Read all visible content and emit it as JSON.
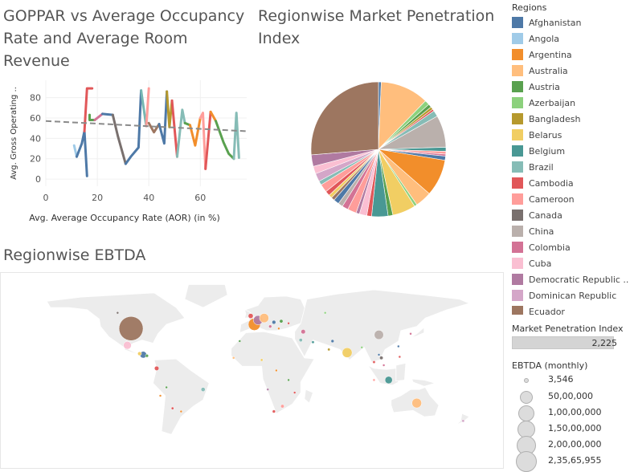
{
  "charts": {
    "scatter_title": " GOPPAR vs Average Occupancy Rate and Average Room Revenue",
    "pie_title": "Regionwise Market Penetration Index",
    "map_title": "Regionwise EBTDA"
  },
  "legend": {
    "title": "Regions",
    "items": [
      {
        "label": "Afghanistan",
        "color": "#4e79a7"
      },
      {
        "label": "Angola",
        "color": "#a0cbe8"
      },
      {
        "label": "Argentina",
        "color": "#f28e2b"
      },
      {
        "label": "Australia",
        "color": "#ffbe7d"
      },
      {
        "label": "Austria",
        "color": "#59a14f"
      },
      {
        "label": "Azerbaijan",
        "color": "#8cd17d"
      },
      {
        "label": "Bangladesh",
        "color": "#b6992d"
      },
      {
        "label": "Belarus",
        "color": "#f1ce63"
      },
      {
        "label": "Belgium",
        "color": "#499894"
      },
      {
        "label": "Brazil",
        "color": "#86bcb6"
      },
      {
        "label": "Cambodia",
        "color": "#e15759"
      },
      {
        "label": "Cameroon",
        "color": "#ff9d9a"
      },
      {
        "label": "Canada",
        "color": "#79706e"
      },
      {
        "label": "China",
        "color": "#bab0ac"
      },
      {
        "label": "Colombia",
        "color": "#d37295"
      },
      {
        "label": "Cuba",
        "color": "#fabfd2"
      },
      {
        "label": "Democratic Republic ..",
        "color": "#b07aa1"
      },
      {
        "label": "Dominican Republic",
        "color": "#d4a6c8"
      },
      {
        "label": "Ecuador",
        "color": "#9d7660"
      }
    ]
  },
  "market_penetration": {
    "title": "Market Penetration Index",
    "value": "2,225"
  },
  "ebtda_legend": {
    "title": "EBTDA (monthly)",
    "sizes": [
      "3,546",
      "50,00,000",
      "1,00,00,000",
      "1,50,00,000",
      "2,00,00,000",
      "2,35,65,955"
    ]
  },
  "chart_data": [
    {
      "type": "line",
      "title": " GOPPAR vs Average Occupancy Rate and Average Room Revenue",
      "xlabel": "Avg. Average Occupancy Rate (AOR) (in %)",
      "ylabel": "Avg. Gross Operating ..",
      "xlim": [
        0,
        78
      ],
      "ylim": [
        -7,
        97
      ],
      "x_ticks": [
        "0",
        "20",
        "40",
        "60"
      ],
      "y_ticks": [
        "0",
        "20",
        "40",
        "60",
        "80"
      ],
      "trend_line": [
        [
          0,
          57
        ],
        [
          78,
          47
        ]
      ],
      "segments": [
        {
          "color": "#a0cbe8",
          "points": [
            [
              11,
              33
            ],
            [
              12,
              22
            ]
          ]
        },
        {
          "color": "#4e79a7",
          "points": [
            [
              12,
              22
            ],
            [
              14,
              35
            ],
            [
              15,
              47
            ],
            [
              16,
              3
            ]
          ]
        },
        {
          "color": "#e15759",
          "points": [
            [
              15,
              47
            ],
            [
              16,
              89
            ],
            [
              18,
              89
            ]
          ]
        },
        {
          "color": "#59a14f",
          "points": [
            [
              17,
              63
            ],
            [
              17,
              58
            ],
            [
              19,
              58
            ]
          ]
        },
        {
          "color": "#d37295",
          "points": [
            [
              19,
              58
            ],
            [
              21,
              62
            ],
            [
              22,
              64
            ]
          ]
        },
        {
          "color": "#4e79a7",
          "points": [
            [
              22,
              64
            ],
            [
              26,
              63
            ]
          ]
        },
        {
          "color": "#79706e",
          "points": [
            [
              26,
              63
            ],
            [
              28,
              42
            ],
            [
              31,
              15
            ]
          ]
        },
        {
          "color": "#4e79a7",
          "points": [
            [
              31,
              15
            ],
            [
              33,
              22
            ],
            [
              36,
              31
            ],
            [
              37,
              87
            ]
          ]
        },
        {
          "color": "#76b7b2",
          "points": [
            [
              37,
              87
            ],
            [
              39,
              52
            ]
          ]
        },
        {
          "color": "#ff9d9a",
          "points": [
            [
              39,
              52
            ],
            [
              40,
              89
            ]
          ]
        },
        {
          "color": "#9d7660",
          "points": [
            [
              40,
              55
            ],
            [
              42,
              46
            ],
            [
              44,
              54
            ]
          ]
        },
        {
          "color": "#4e79a7",
          "points": [
            [
              44,
              54
            ],
            [
              46,
              35
            ],
            [
              47,
              86
            ]
          ]
        },
        {
          "color": "#b6992d",
          "points": [
            [
              47,
              86
            ],
            [
              48,
              51
            ],
            [
              49,
              77
            ]
          ]
        },
        {
          "color": "#e15759",
          "points": [
            [
              49,
              77
            ],
            [
              50,
              49
            ],
            [
              51,
              22
            ]
          ]
        },
        {
          "color": "#86bcb6",
          "points": [
            [
              51,
              22
            ],
            [
              53,
              68
            ],
            [
              54,
              55
            ]
          ]
        },
        {
          "color": "#59a14f",
          "points": [
            [
              54,
              55
            ],
            [
              56,
              53
            ]
          ]
        },
        {
          "color": "#f28e2b",
          "points": [
            [
              56,
              53
            ],
            [
              58,
              33
            ],
            [
              60,
              60
            ]
          ]
        },
        {
          "color": "#ff9d9a",
          "points": [
            [
              60,
              60
            ],
            [
              61,
              65
            ],
            [
              62,
              10
            ]
          ]
        },
        {
          "color": "#e15759",
          "points": [
            [
              62,
              10
            ],
            [
              64,
              66
            ]
          ]
        },
        {
          "color": "#f28e2b",
          "points": [
            [
              64,
              66
            ],
            [
              66,
              57
            ]
          ]
        },
        {
          "color": "#59a14f",
          "points": [
            [
              66,
              57
            ],
            [
              69,
              36
            ],
            [
              71,
              25
            ],
            [
              73,
              20
            ]
          ]
        },
        {
          "color": "#86bcb6",
          "points": [
            [
              73,
              20
            ],
            [
              74,
              65
            ],
            [
              75,
              21
            ]
          ]
        }
      ]
    },
    {
      "type": "pie",
      "title": "Regionwise Market Penetration Index",
      "slices": [
        {
          "color": "#4e79a7",
          "value": 8
        },
        {
          "color": "#ffbe7d",
          "value": 142
        },
        {
          "color": "#8cd17d",
          "value": 14
        },
        {
          "color": "#59a14f",
          "value": 10
        },
        {
          "color": "#b6992d",
          "value": 8
        },
        {
          "color": "#e15759",
          "value": 6
        },
        {
          "color": "#86bcb6",
          "value": 18
        },
        {
          "color": "#bab0ac",
          "value": 94
        },
        {
          "color": "#499894",
          "value": 12
        },
        {
          "color": "#ff9d9a",
          "value": 8
        },
        {
          "color": "#d37295",
          "value": 6
        },
        {
          "color": "#4e79a7",
          "value": 12
        },
        {
          "color": "#f28e2b",
          "value": 108
        },
        {
          "color": "#ffbe7d",
          "value": 48
        },
        {
          "color": "#8cd17d",
          "value": 8
        },
        {
          "color": "#f1ce63",
          "value": 68
        },
        {
          "color": "#59a14f",
          "value": 14
        },
        {
          "color": "#499894",
          "value": 48
        },
        {
          "color": "#e15759",
          "value": 14
        },
        {
          "color": "#fabfd2",
          "value": 22
        },
        {
          "color": "#b07aa1",
          "value": 10
        },
        {
          "color": "#ff9d9a",
          "value": 26
        },
        {
          "color": "#d37295",
          "value": 18
        },
        {
          "color": "#bab0ac",
          "value": 14
        },
        {
          "color": "#4e79a7",
          "value": 16
        },
        {
          "color": "#9d7660",
          "value": 10
        },
        {
          "color": "#f1ce63",
          "value": 10
        },
        {
          "color": "#e15759",
          "value": 14
        },
        {
          "color": "#ff9d9a",
          "value": 24
        },
        {
          "color": "#86bcb6",
          "value": 12
        },
        {
          "color": "#d4a6c8",
          "value": 24
        },
        {
          "color": "#fabfd2",
          "value": 22
        },
        {
          "color": "#b07aa1",
          "value": 34
        },
        {
          "color": "#9d7660",
          "value": 322
        }
      ]
    },
    {
      "type": "scatter",
      "title": "Regionwise EBTDA",
      "encoding": "bubble size = EBTDA (monthly)",
      "points": [
        {
          "lon": -99,
          "lat": 40,
          "value": 23565955,
          "color": "#9d7660"
        },
        {
          "lon": -102,
          "lat": 24,
          "value": 2500000,
          "color": "#fabfd2"
        },
        {
          "lon": -89,
          "lat": 15,
          "value": 1800000,
          "color": "#4e79a7"
        },
        {
          "lon": -92,
          "lat": 16,
          "value": 600000,
          "color": "#f1ce63"
        },
        {
          "lon": -86,
          "lat": 14,
          "value": 400000,
          "color": "#59a14f"
        },
        {
          "lon": -78,
          "lat": 2,
          "value": 800000,
          "color": "#e15759"
        },
        {
          "lon": -40,
          "lat": -12,
          "value": 700000,
          "color": "#86bcb6"
        },
        {
          "lon": -65,
          "lat": -30,
          "value": 300000,
          "color": "#e15759"
        },
        {
          "lon": -58,
          "lat": -33,
          "value": 150000,
          "color": "#f28e2b"
        },
        {
          "lon": -70,
          "lat": -10,
          "value": 100000,
          "color": "#59a14f"
        },
        {
          "lon": -110,
          "lat": 55,
          "value": 3546,
          "color": "#79706e"
        },
        {
          "lon": -75,
          "lat": -18,
          "value": 150000,
          "color": "#f28e2b"
        },
        {
          "lon": 5,
          "lat": 48,
          "value": 3500000,
          "color": "#b07aa1"
        },
        {
          "lon": 2,
          "lat": 44,
          "value": 6000000,
          "color": "#f28e2b"
        },
        {
          "lon": 10,
          "lat": 50,
          "value": 3500000,
          "color": "#ffbe7d"
        },
        {
          "lon": -1,
          "lat": 52,
          "value": 1000000,
          "color": "#e15759"
        },
        {
          "lon": 18,
          "lat": 46,
          "value": 600000,
          "color": "#4e79a7"
        },
        {
          "lon": 24,
          "lat": 47,
          "value": 500000,
          "color": "#59a14f"
        },
        {
          "lon": 15,
          "lat": 42,
          "value": 400000,
          "color": "#d37295"
        },
        {
          "lon": 30,
          "lat": 45,
          "value": 200000,
          "color": "#e15759"
        },
        {
          "lon": 22,
          "lat": 40,
          "value": 200000,
          "color": "#f28e2b"
        },
        {
          "lon": 42,
          "lat": 37,
          "value": 800000,
          "color": "#d37295"
        },
        {
          "lon": 40,
          "lat": 29,
          "value": 500000,
          "color": "#86bcb6"
        },
        {
          "lon": 50,
          "lat": 27,
          "value": 300000,
          "color": "#499894"
        },
        {
          "lon": 66,
          "lat": 28,
          "value": 400000,
          "color": "#4e79a7"
        },
        {
          "lon": 78,
          "lat": 17,
          "value": 4000000,
          "color": "#f1ce63"
        },
        {
          "lon": 104,
          "lat": 34,
          "value": 3500000,
          "color": "#bab0ac"
        },
        {
          "lon": 63,
          "lat": 20,
          "value": 300000,
          "color": "#b6992d"
        },
        {
          "lon": 90,
          "lat": 22,
          "value": 150000,
          "color": "#8cd17d"
        },
        {
          "lon": 100,
          "lat": 8,
          "value": 300000,
          "color": "#e15759"
        },
        {
          "lon": 104,
          "lat": 15,
          "value": 200000,
          "color": "#4e79a7"
        },
        {
          "lon": 106,
          "lat": 12,
          "value": 500000,
          "color": "#79706e"
        },
        {
          "lon": 108,
          "lat": 5,
          "value": 200000,
          "color": "#d37295"
        },
        {
          "lon": 112,
          "lat": -3,
          "value": 2200000,
          "color": "#499894"
        },
        {
          "lon": 120,
          "lat": 23,
          "value": 200000,
          "color": "#4e79a7"
        },
        {
          "lon": 121,
          "lat": 13,
          "value": 150000,
          "color": "#e15759"
        },
        {
          "lon": 130,
          "lat": 35,
          "value": 100000,
          "color": "#d37295"
        },
        {
          "lon": 100,
          "lat": -3,
          "value": 250000,
          "color": "#ff9d9a"
        },
        {
          "lon": 135,
          "lat": -25,
          "value": 3800000,
          "color": "#ffbe7d"
        },
        {
          "lon": 173,
          "lat": -42,
          "value": 300000,
          "color": "#d4a6c8"
        },
        {
          "lon": 60,
          "lat": 55,
          "value": 100000,
          "color": "#8cd17d"
        },
        {
          "lon": 8,
          "lat": 10,
          "value": 300000,
          "color": "#f1ce63"
        },
        {
          "lon": -15,
          "lat": 12,
          "value": 250000,
          "color": "#ffbe7d"
        },
        {
          "lon": 20,
          "lat": 0,
          "value": 200000,
          "color": "#f28e2b"
        },
        {
          "lon": 13,
          "lat": -12,
          "value": 150000,
          "color": "#b07aa1"
        },
        {
          "lon": 30,
          "lat": -3,
          "value": 150000,
          "color": "#59a14f"
        },
        {
          "lon": 35,
          "lat": -15,
          "value": 150000,
          "color": "#e15759"
        },
        {
          "lon": 25,
          "lat": -28,
          "value": 500000,
          "color": "#ff9d9a"
        },
        {
          "lon": 18,
          "lat": -33,
          "value": 400000,
          "color": "#e15759"
        },
        {
          "lon": -10,
          "lat": 28,
          "value": 150000,
          "color": "#59a14f"
        }
      ]
    }
  ]
}
